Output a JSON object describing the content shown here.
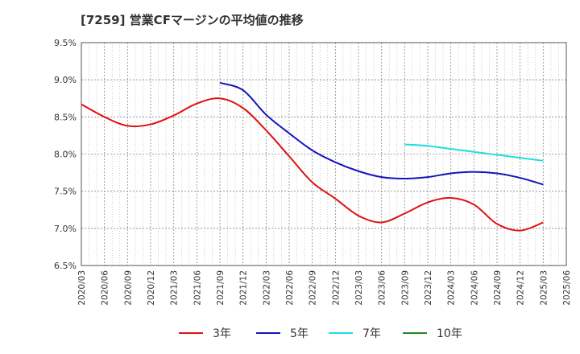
{
  "chart_data": {
    "type": "line",
    "title": "[7259]  営業CFマージンの平均値の推移",
    "xlabel": "",
    "ylabel": "",
    "ylim": [
      6.5,
      9.5
    ],
    "y_ticks": [
      "6.5%",
      "7.0%",
      "7.5%",
      "8.0%",
      "8.5%",
      "9.0%",
      "9.5%"
    ],
    "x_ticks": [
      "2020/03",
      "2020/06",
      "2020/09",
      "2020/12",
      "2021/03",
      "2021/06",
      "2021/09",
      "2021/12",
      "2022/03",
      "2022/06",
      "2022/09",
      "2022/12",
      "2023/03",
      "2023/06",
      "2023/09",
      "2023/12",
      "2024/03",
      "2024/06",
      "2024/09",
      "2024/12",
      "2025/03",
      "2025/06"
    ],
    "grid": true,
    "legend_position": "bottom",
    "series": [
      {
        "name": "3年",
        "color": "#dd1111",
        "values": [
          [
            "2020/03",
            8.67
          ],
          [
            "2020/06",
            8.5
          ],
          [
            "2020/09",
            8.38
          ],
          [
            "2020/12",
            8.4
          ],
          [
            "2021/03",
            8.52
          ],
          [
            "2021/06",
            8.68
          ],
          [
            "2021/09",
            8.75
          ],
          [
            "2021/12",
            8.62
          ],
          [
            "2022/03",
            8.32
          ],
          [
            "2022/06",
            7.97
          ],
          [
            "2022/09",
            7.62
          ],
          [
            "2022/12",
            7.4
          ],
          [
            "2023/03",
            7.17
          ],
          [
            "2023/06",
            7.08
          ],
          [
            "2023/09",
            7.2
          ],
          [
            "2023/12",
            7.35
          ],
          [
            "2024/03",
            7.41
          ],
          [
            "2024/06",
            7.32
          ],
          [
            "2024/09",
            7.06
          ],
          [
            "2024/12",
            6.97
          ],
          [
            "2025/03",
            7.08
          ]
        ]
      },
      {
        "name": "5年",
        "color": "#1414bb",
        "values": [
          [
            "2021/09",
            8.96
          ],
          [
            "2021/12",
            8.86
          ],
          [
            "2022/03",
            8.53
          ],
          [
            "2022/06",
            8.28
          ],
          [
            "2022/09",
            8.05
          ],
          [
            "2022/12",
            7.89
          ],
          [
            "2023/03",
            7.77
          ],
          [
            "2023/06",
            7.69
          ],
          [
            "2023/09",
            7.67
          ],
          [
            "2023/12",
            7.69
          ],
          [
            "2024/03",
            7.74
          ],
          [
            "2024/06",
            7.76
          ],
          [
            "2024/09",
            7.74
          ],
          [
            "2024/12",
            7.68
          ],
          [
            "2025/03",
            7.59
          ]
        ]
      },
      {
        "name": "7年",
        "color": "#22dddd",
        "values": [
          [
            "2023/09",
            8.13
          ],
          [
            "2023/12",
            8.11
          ],
          [
            "2024/03",
            8.07
          ],
          [
            "2024/06",
            8.03
          ],
          [
            "2024/09",
            7.99
          ],
          [
            "2024/12",
            7.95
          ],
          [
            "2025/03",
            7.91
          ]
        ]
      },
      {
        "name": "10年",
        "color": "#228822",
        "values": []
      }
    ]
  }
}
